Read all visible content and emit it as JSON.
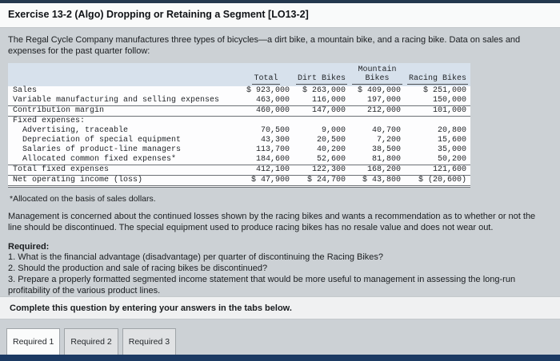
{
  "header": {
    "title": "Exercise 13-2 (Algo) Dropping or Retaining a Segment [LO13-2]"
  },
  "intro": "The Regal Cycle Company manufactures three types of bicycles—a dirt bike, a mountain bike, and a racing bike. Data on sales and expenses for the past quarter follow:",
  "table": {
    "columns": [
      "",
      "Total",
      "Dirt Bikes",
      "Mountain Bikes",
      "Racing Bikes"
    ],
    "rows": [
      {
        "label": "Sales",
        "cells": [
          "$ 923,000",
          "$ 263,000",
          "$ 409,000",
          "$ 251,000"
        ]
      },
      {
        "label": "Variable manufacturing and selling expenses",
        "cells": [
          "463,000",
          "116,000",
          "197,000",
          "150,000"
        ]
      },
      {
        "label": "Contribution margin",
        "cells": [
          "460,000",
          "147,000",
          "212,000",
          "101,000"
        ]
      },
      {
        "label": "Fixed expenses:",
        "cells": [
          "",
          "",
          "",
          ""
        ]
      },
      {
        "label": "Advertising, traceable",
        "cells": [
          "70,500",
          "9,000",
          "40,700",
          "20,800"
        ]
      },
      {
        "label": "Depreciation of special equipment",
        "cells": [
          "43,300",
          "20,500",
          "7,200",
          "15,600"
        ]
      },
      {
        "label": "Salaries of product-line managers",
        "cells": [
          "113,700",
          "40,200",
          "38,500",
          "35,000"
        ]
      },
      {
        "label": "Allocated common fixed expenses*",
        "cells": [
          "184,600",
          "52,600",
          "81,800",
          "50,200"
        ]
      },
      {
        "label": "Total fixed expenses",
        "cells": [
          "412,100",
          "122,300",
          "168,200",
          "121,600"
        ]
      },
      {
        "label": "Net operating income (loss)",
        "cells": [
          "$ 47,900",
          "$ 24,700",
          "$ 43,800",
          "$ (20,600)"
        ]
      }
    ]
  },
  "footnote": "*Allocated on the basis of sales dollars.",
  "management_note": "Management is concerned about the continued losses shown by the racing bikes and wants a recommendation as to whether or not the line should be discontinued. The special equipment used to produce racing bikes has no resale value and does not wear out.",
  "required": {
    "heading": "Required:",
    "items": [
      "1. What is the financial advantage (disadvantage) per quarter of discontinuing the Racing Bikes?",
      "2. Should the production and sale of racing bikes be discontinued?",
      "3. Prepare a properly formatted segmented income statement that would be more useful to management in assessing the long-run profitability of the various product lines."
    ]
  },
  "instruction": "Complete this question by entering your answers in the tabs below.",
  "tabs": [
    "Required 1",
    "Required 2",
    "Required 3"
  ]
}
